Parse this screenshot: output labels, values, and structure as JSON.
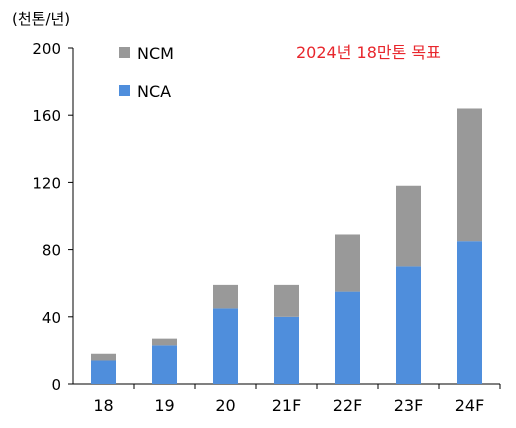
{
  "chart_data": {
    "type": "bar",
    "stacked": true,
    "unit_label": "(천톤/년)",
    "annotation": "2024년 18만톤 목표",
    "annotation_color": "#e8262c",
    "categories": [
      "18",
      "19",
      "20",
      "21F",
      "22F",
      "23F",
      "24F"
    ],
    "series": [
      {
        "name": "NCA",
        "color": "#4f8edc",
        "values": [
          14,
          23,
          45,
          40,
          55,
          70,
          85
        ]
      },
      {
        "name": "NCM",
        "color": "#999999",
        "values": [
          4,
          4,
          14,
          19,
          34,
          48,
          79
        ]
      }
    ],
    "ylim": [
      0,
      200
    ],
    "yticks": [
      "0",
      "40",
      "80",
      "120",
      "160",
      "200"
    ],
    "legend": [
      {
        "name": "NCM",
        "color": "#999999"
      },
      {
        "name": "NCA",
        "color": "#4f8edc"
      }
    ],
    "legend_position": "top-left",
    "grid": false
  }
}
